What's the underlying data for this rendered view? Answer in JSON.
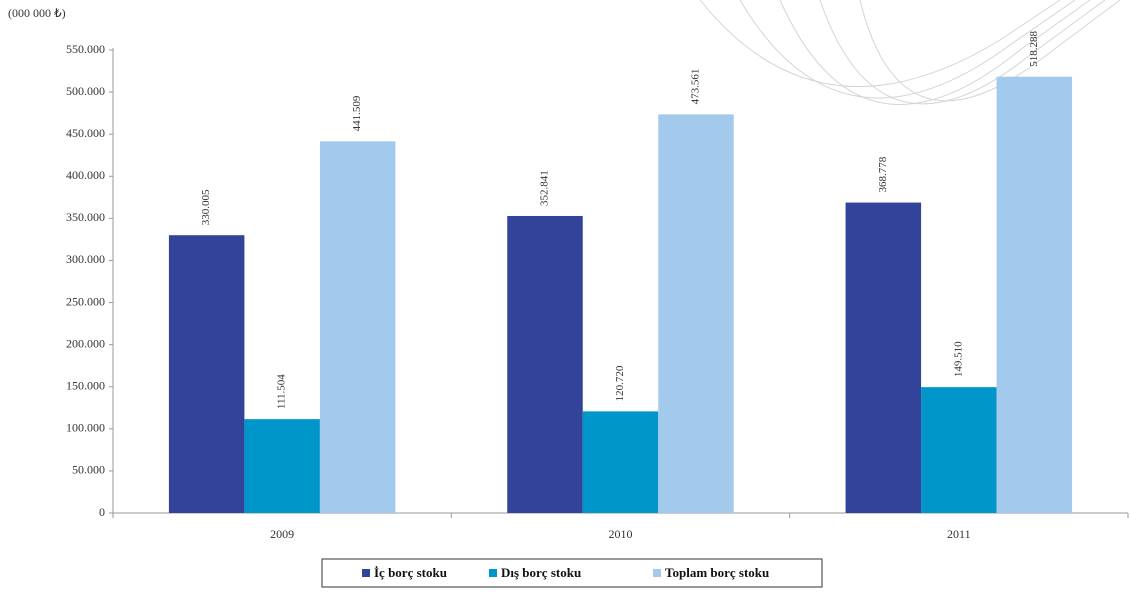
{
  "chart_data": {
    "type": "bar",
    "y_axis_label": "(000 000 ₺)",
    "categories": [
      "2009",
      "2010",
      "2011"
    ],
    "series": [
      {
        "name": "İç borç stoku",
        "color": "#33439a",
        "values": [
          330005,
          352841,
          368778
        ],
        "value_labels": [
          "330.005",
          "352.841",
          "368.778"
        ]
      },
      {
        "name": "Dış borç stoku",
        "color": "#0096c9",
        "values": [
          111504,
          120720,
          149510
        ],
        "value_labels": [
          "111.504",
          "120.720",
          "149.510"
        ]
      },
      {
        "name": "Toplam borç stoku",
        "color": "#a3caec",
        "values": [
          441509,
          473561,
          518288
        ],
        "value_labels": [
          "441.509",
          "473.561",
          "518.288"
        ]
      }
    ],
    "ylim": [
      0,
      550000
    ],
    "yticks": [
      0,
      {
        "value": 50000,
        "label": "50.000"
      },
      {
        "value": 100000,
        "label": "100.000"
      },
      {
        "value": 150000,
        "label": "150.000"
      },
      {
        "value": 200000,
        "label": "200.000"
      },
      {
        "value": 250000,
        "label": "250.000"
      },
      {
        "value": 300000,
        "label": "300.000"
      },
      {
        "value": 350000,
        "label": "350.000"
      },
      {
        "value": 400000,
        "label": "400.000"
      },
      {
        "value": 450000,
        "label": "450.000"
      },
      {
        "value": 500000,
        "label": "500.000"
      },
      {
        "value": 550000,
        "label": "550.000"
      }
    ],
    "grid": false,
    "legend": "bottom"
  }
}
